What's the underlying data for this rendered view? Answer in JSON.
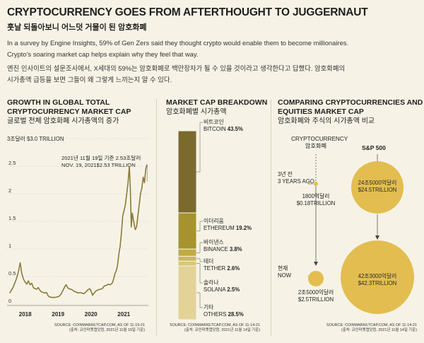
{
  "header": {
    "title": "CRYPTOCURRENCY GOES FROM AFTERTHOUGHT TO JUGGERNAUT",
    "subtitle_kr": "훗날 되돌아보니 어느덧 거물이 된 암호화폐",
    "intro_en_1": "In a survey by Engine Insights, 59% of Gen Zers said they thought crypto would enable them to become millionaires.",
    "intro_en_2": "Crypto's soaring market cap helps explain why they feel that way.",
    "intro_kr_1": "엔진 인사이트의 설문조사에서, X세대의 59%는 암호화폐로 백만장자가 될 수 있을 것이라고 생각한다고 답했다. 암호화폐의",
    "intro_kr_2": "시가총액 급등을 보면 그들이 왜 그렇게 느끼는지 알 수 있다."
  },
  "growth": {
    "title_1": "GROWTH IN GLOBAL TOTAL",
    "title_2": "CRYPTOCURRENCY MARKET CAP",
    "title_kr": "글로벌 전체 암호화폐 시가총액의 증가",
    "unit_label": "3조달러 $3.0 TRILLION",
    "annotation_kr": "2021년 11월 19일 기준 2.53조달러",
    "annotation_en": "NOV. 19, 2021$2.53 TRILLION",
    "source_1": "SOURCE: COINMARKETCAP.COM, AS OF 11-19-21",
    "source_2": "(출처: 코인마켓캡닷컴, 2021년 11월 19일 기준)"
  },
  "breakdown": {
    "title": "MARKET CAP BREAKDOWN",
    "title_kr": "암호화폐별 시가총액",
    "items": [
      {
        "kr": "비트코인",
        "en": "BITCOIN",
        "pct_label": "43.5%",
        "value": 43.5,
        "color": "#7b6a2e"
      },
      {
        "kr": "이더리움",
        "en": "ETHEREUM",
        "pct_label": "19.2%",
        "value": 19.2,
        "color": "#a6922f"
      },
      {
        "kr": "바이낸스",
        "en": "BINANCE",
        "pct_label": "3.8%",
        "value": 3.8,
        "color": "#c0aa48"
      },
      {
        "kr": "테더",
        "en": "TETHER",
        "pct_label": "2.6%",
        "value": 2.6,
        "color": "#cdb85c"
      },
      {
        "kr": "솔라나",
        "en": "SOLANA",
        "pct_label": "2.5%",
        "value": 2.5,
        "color": "#d8c67a"
      },
      {
        "kr": "기타",
        "en": "OTHERS",
        "pct_label": "28.5%",
        "value": 28.5,
        "color": "#e2d397"
      }
    ],
    "source_1": "SOURCE: COINMARKETCAP.COM, AS OF 11-14-21",
    "source_2": "(출처: 코인마켓캡닷컴, 2021년 11월 14일 기준)"
  },
  "comparing": {
    "title_1": "COMPARING CRYPTOCURRENCIES AND",
    "title_2": "EQUITIES MARKET CAP",
    "title_kr": "암호화폐와 주식의 시가총액 비교",
    "col_crypto_en": "CRYPTOCURRENCY",
    "col_crypto_kr": "암호화폐",
    "col_sp": "S&P 500",
    "row_past_kr": "3년 전",
    "row_past_en": "3 YEARS AGO",
    "row_now_kr": "현재",
    "row_now_en": "NOW",
    "crypto_past_kr": "1800억달러",
    "crypto_past_en": "$0.18TRILLION",
    "sp_past_kr": "24조5000억달러",
    "sp_past_en": "$24.5TRILLION",
    "crypto_now_kr": "2조5000억달러",
    "crypto_now_en": "$2.5TRILLION",
    "sp_now_kr": "42조3000억달러",
    "sp_now_en": "$42.3TRILLION",
    "source_1": "SOURCE: COINMARKETCAP.COM, AS OF 11-14-21",
    "source_2": "(출처: 코인마켓캡닷컴, 2021년 11월 14일 기준)"
  },
  "chart_data": [
    {
      "type": "line",
      "title": "GROWTH IN GLOBAL TOTAL CRYPTOCURRENCY MARKET CAP",
      "ylabel": "",
      "ylim": [
        0,
        3
      ],
      "yticks": [
        "0",
        "0.5",
        "1",
        "1.5",
        "2",
        "2.5"
      ],
      "xticks": [
        "2018",
        "2019",
        "2020",
        "2021"
      ],
      "x": [
        2017.7,
        2017.8,
        2017.9,
        2017.97,
        2018.02,
        2018.07,
        2018.12,
        2018.17,
        2018.22,
        2018.27,
        2018.32,
        2018.37,
        2018.42,
        2018.47,
        2018.52,
        2018.57,
        2018.62,
        2018.67,
        2018.72,
        2018.77,
        2018.82,
        2018.87,
        2018.92,
        2018.97,
        2019.02,
        2019.08,
        2019.14,
        2019.2,
        2019.26,
        2019.32,
        2019.38,
        2019.42,
        2019.46,
        2019.5,
        2019.55,
        2019.6,
        2019.66,
        2019.72,
        2019.78,
        2019.84,
        2019.9,
        2019.96,
        2020.02,
        2020.08,
        2020.14,
        2020.19,
        2020.22,
        2020.27,
        2020.33,
        2020.4,
        2020.47,
        2020.53,
        2020.58,
        2020.64,
        2020.7,
        2020.76,
        2020.82,
        2020.86,
        2020.9,
        2020.94,
        2020.98,
        2021.02,
        2021.06,
        2021.1,
        2021.14,
        2021.18,
        2021.22,
        2021.26,
        2021.3,
        2021.34,
        2021.37,
        2021.4,
        2021.43,
        2021.47,
        2021.52,
        2021.56,
        2021.6,
        2021.64,
        2021.68,
        2021.72,
        2021.76,
        2021.8,
        2021.84,
        2021.88
      ],
      "y": [
        0.2,
        0.3,
        0.45,
        0.6,
        0.75,
        0.55,
        0.45,
        0.4,
        0.36,
        0.42,
        0.35,
        0.38,
        0.3,
        0.28,
        0.27,
        0.3,
        0.25,
        0.22,
        0.21,
        0.2,
        0.21,
        0.15,
        0.13,
        0.12,
        0.12,
        0.12,
        0.13,
        0.14,
        0.18,
        0.25,
        0.32,
        0.35,
        0.3,
        0.28,
        0.27,
        0.26,
        0.23,
        0.22,
        0.2,
        0.21,
        0.2,
        0.19,
        0.22,
        0.26,
        0.28,
        0.22,
        0.16,
        0.2,
        0.24,
        0.26,
        0.27,
        0.29,
        0.33,
        0.34,
        0.36,
        0.35,
        0.38,
        0.45,
        0.55,
        0.6,
        0.7,
        0.9,
        1.05,
        1.3,
        1.6,
        1.7,
        1.8,
        2.0,
        2.2,
        2.5,
        2.1,
        1.4,
        1.65,
        1.5,
        1.35,
        1.4,
        1.6,
        1.8,
        2.0,
        2.1,
        2.3,
        2.2,
        2.45,
        2.53
      ]
    },
    {
      "type": "bar",
      "title": "MARKET CAP BREAKDOWN",
      "categories": [
        "BITCOIN",
        "ETHEREUM",
        "BINANCE",
        "TETHER",
        "SOLANA",
        "OTHERS"
      ],
      "values": [
        43.5,
        19.2,
        3.8,
        2.6,
        2.5,
        28.5
      ]
    },
    {
      "type": "scatter",
      "title": "COMPARING CRYPTOCURRENCIES AND EQUITIES MARKET CAP",
      "categories": [
        "CRYPTOCURRENCY",
        "S&P 500"
      ],
      "series": [
        {
          "name": "3 YEARS AGO",
          "values": [
            0.18,
            24.5
          ]
        },
        {
          "name": "NOW",
          "values": [
            2.5,
            42.3
          ]
        }
      ]
    }
  ]
}
